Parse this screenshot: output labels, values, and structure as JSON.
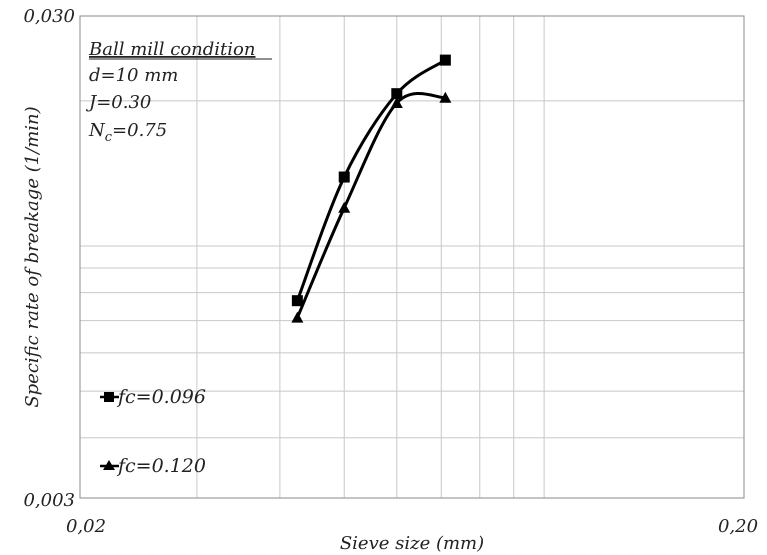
{
  "chart_data": {
    "type": "scatter",
    "xscale": "log",
    "yscale": "log",
    "xlim": [
      0.02,
      0.2
    ],
    "ylim": [
      0.003,
      0.03
    ],
    "x_tick_labels": [
      {
        "value": 0.02,
        "label": "0,02"
      },
      {
        "value": 0.2,
        "label": "0,20"
      }
    ],
    "y_tick_labels": [
      {
        "value": 0.003,
        "label": "0,003"
      },
      {
        "value": 0.03,
        "label": "0,030"
      }
    ],
    "xlabel": "Sieve size (mm)",
    "ylabel": "Specific rate of breakage (1/min)",
    "grid": true,
    "annotation": {
      "heading": "Ball mill condition",
      "lines": [
        "d=10 mm",
        "J=0.30"
      ],
      "nc_main": "N",
      "nc_sub": "c",
      "nc_rest": "=0.75"
    },
    "legend_placement": "left",
    "series": [
      {
        "name": "fc=0.096",
        "marker": "square",
        "color": "#000000",
        "x": [
          0.0425,
          0.05,
          0.06,
          0.071
        ],
        "y": [
          0.0077,
          0.0139,
          0.0207,
          0.0243
        ]
      },
      {
        "name": "fc=0.120",
        "marker": "triangle",
        "color": "#000000",
        "x": [
          0.0425,
          0.05,
          0.06,
          0.071
        ],
        "y": [
          0.0071,
          0.012,
          0.0198,
          0.0203
        ]
      }
    ]
  }
}
